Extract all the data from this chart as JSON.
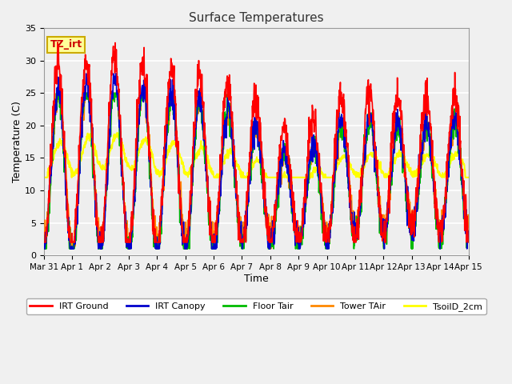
{
  "title": "Surface Temperatures",
  "xlabel": "Time",
  "ylabel": "Temperature (C)",
  "ylim": [
    0,
    35
  ],
  "xlim": [
    0,
    15
  ],
  "annotation_text": "TZ_irt",
  "annotation_bg": "#ffff99",
  "annotation_border": "#ccaa00",
  "series_colors": {
    "IRT Ground": "#ff0000",
    "IRT Canopy": "#0000cc",
    "Floor Tair": "#00bb00",
    "Tower TAir": "#ff8800",
    "TsoilD_2cm": "#ffff00"
  },
  "xtick_labels": [
    "Mar 31",
    "Apr 1",
    "Apr 2",
    "Apr 3",
    "Apr 4",
    "Apr 5",
    "Apr 6",
    "Apr 7",
    "Apr 8",
    "Apr 9",
    "Apr 10",
    "Apr 11",
    "Apr 12",
    "Apr 13",
    "Apr 14",
    "Apr 15"
  ],
  "ytick_values": [
    0,
    5,
    10,
    15,
    20,
    25,
    30,
    35
  ],
  "figsize": [
    6.4,
    4.8
  ],
  "dpi": 100
}
